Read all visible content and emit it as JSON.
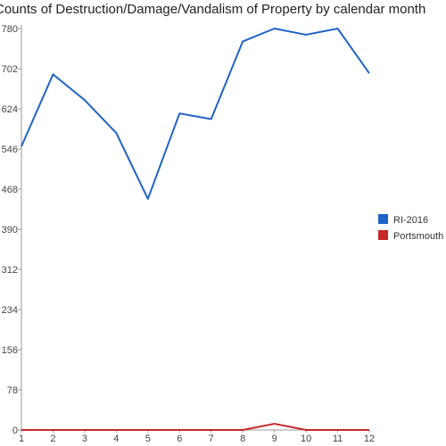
{
  "chart_data": {
    "type": "line",
    "title": "Counts of Destruction/Damage/Vandalism of Property by calendar month",
    "xlabel": "",
    "ylabel": "",
    "x": [
      1,
      2,
      3,
      4,
      5,
      6,
      7,
      8,
      9,
      10,
      11,
      12
    ],
    "x_tick_labels": [
      "1",
      "2",
      "3",
      "4",
      "5",
      "6",
      "7",
      "8",
      "9",
      "10",
      "11",
      "12"
    ],
    "ylim": [
      0,
      780
    ],
    "y_ticks": [
      0,
      78,
      156,
      234,
      312,
      390,
      468,
      546,
      624,
      702,
      780
    ],
    "y_tick_labels": [
      "0",
      "78",
      "156",
      "234",
      "312",
      "390",
      "468",
      "546",
      "624",
      "702",
      "780"
    ],
    "grid": false,
    "legend_position": "right",
    "series": [
      {
        "name": "RI-2016",
        "color": "#1f63c6",
        "values": [
          551,
          691,
          641,
          577,
          449,
          615,
          604,
          755,
          780,
          768,
          780,
          693
        ]
      },
      {
        "name": "Portsmouth",
        "color": "#c62828",
        "values": [
          0,
          0,
          0,
          0,
          0,
          0,
          0,
          0,
          12,
          0,
          0,
          0
        ]
      }
    ]
  }
}
